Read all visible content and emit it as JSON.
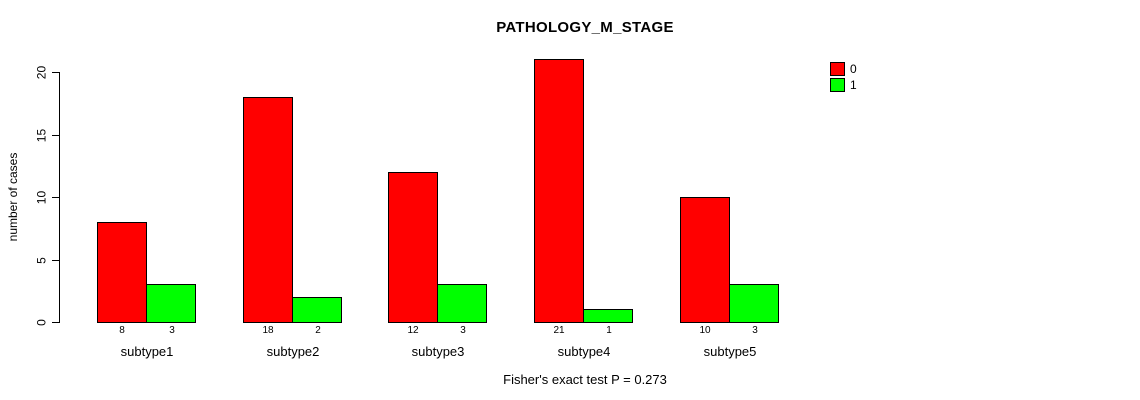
{
  "chart_data": {
    "type": "bar",
    "title": "PATHOLOGY_M_STAGE",
    "xlabel": "",
    "ylabel": "number of cases",
    "categories": [
      "subtype1",
      "subtype2",
      "subtype3",
      "subtype4",
      "subtype5"
    ],
    "series": [
      {
        "name": "0",
        "color": "#ff0000",
        "values": [
          8,
          18,
          12,
          21,
          10
        ]
      },
      {
        "name": "1",
        "color": "#00ff00",
        "values": [
          3,
          2,
          3,
          1,
          3
        ]
      }
    ],
    "ylim": [
      0,
      20
    ],
    "yticks": [
      0,
      5,
      10,
      15,
      20
    ],
    "bar_value_labels": true,
    "annotation": "Fisher's exact test P = 0.273",
    "legend_position": "top-right",
    "grid": false,
    "background": "#ffffff"
  }
}
